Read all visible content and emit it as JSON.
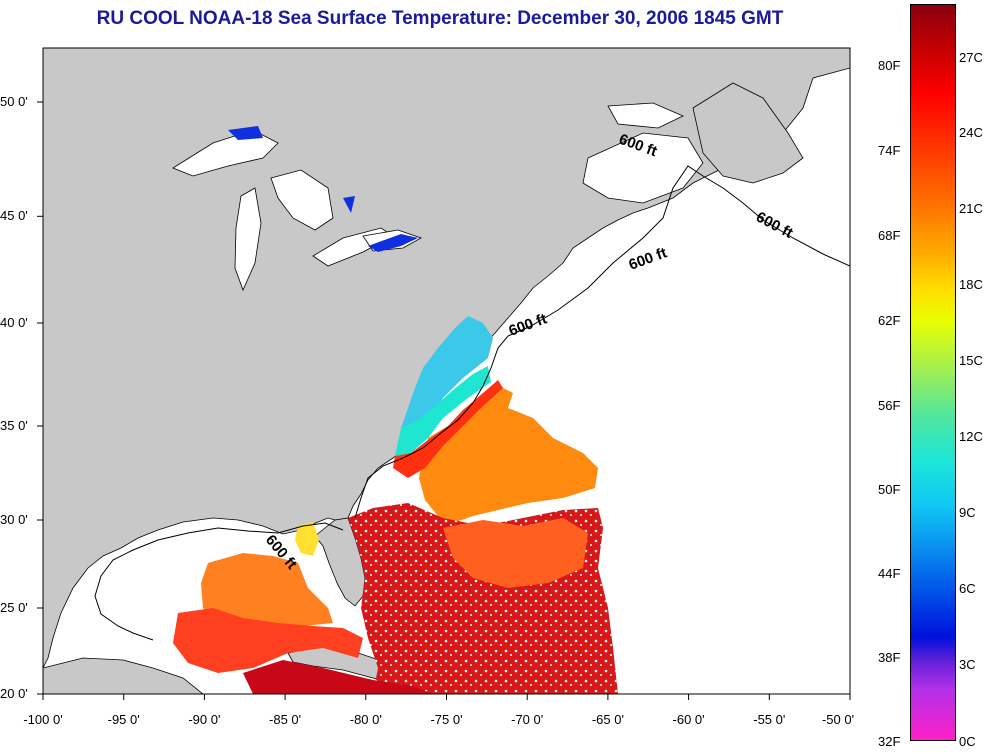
{
  "title": "RU COOL  NOAA-18  Sea Surface Temperature:  December 30, 2006 1845 GMT",
  "map": {
    "lon_ticks": [
      "-100 0'",
      "-95 0'",
      "-90 0'",
      "-85 0'",
      "-80 0'",
      "-75 0'",
      "-70 0'",
      "-65 0'",
      "-60 0'",
      "-55 0'",
      "-50 0'"
    ],
    "lat_ticks": [
      "50 0'",
      "45 0'",
      "40 0'",
      "35 0'",
      "30 0'",
      "25 0'",
      "20 0'"
    ],
    "contour_labels": [
      "600 ft",
      "600 ft",
      "600 ft",
      "600 ft",
      "600 ft"
    ],
    "colors": {
      "land": "#c8c8c8",
      "ocean_no_data": "#ffffff",
      "border": "#000000"
    }
  },
  "colorbar": {
    "fahrenheit_labels": [
      "80F",
      "74F",
      "68F",
      "62F",
      "56F",
      "50F",
      "44F",
      "38F",
      "32F"
    ],
    "celsius_labels": [
      "27C",
      "24C",
      "21C",
      "18C",
      "15C",
      "12C",
      "9C",
      "6C",
      "3C",
      "0C"
    ]
  }
}
